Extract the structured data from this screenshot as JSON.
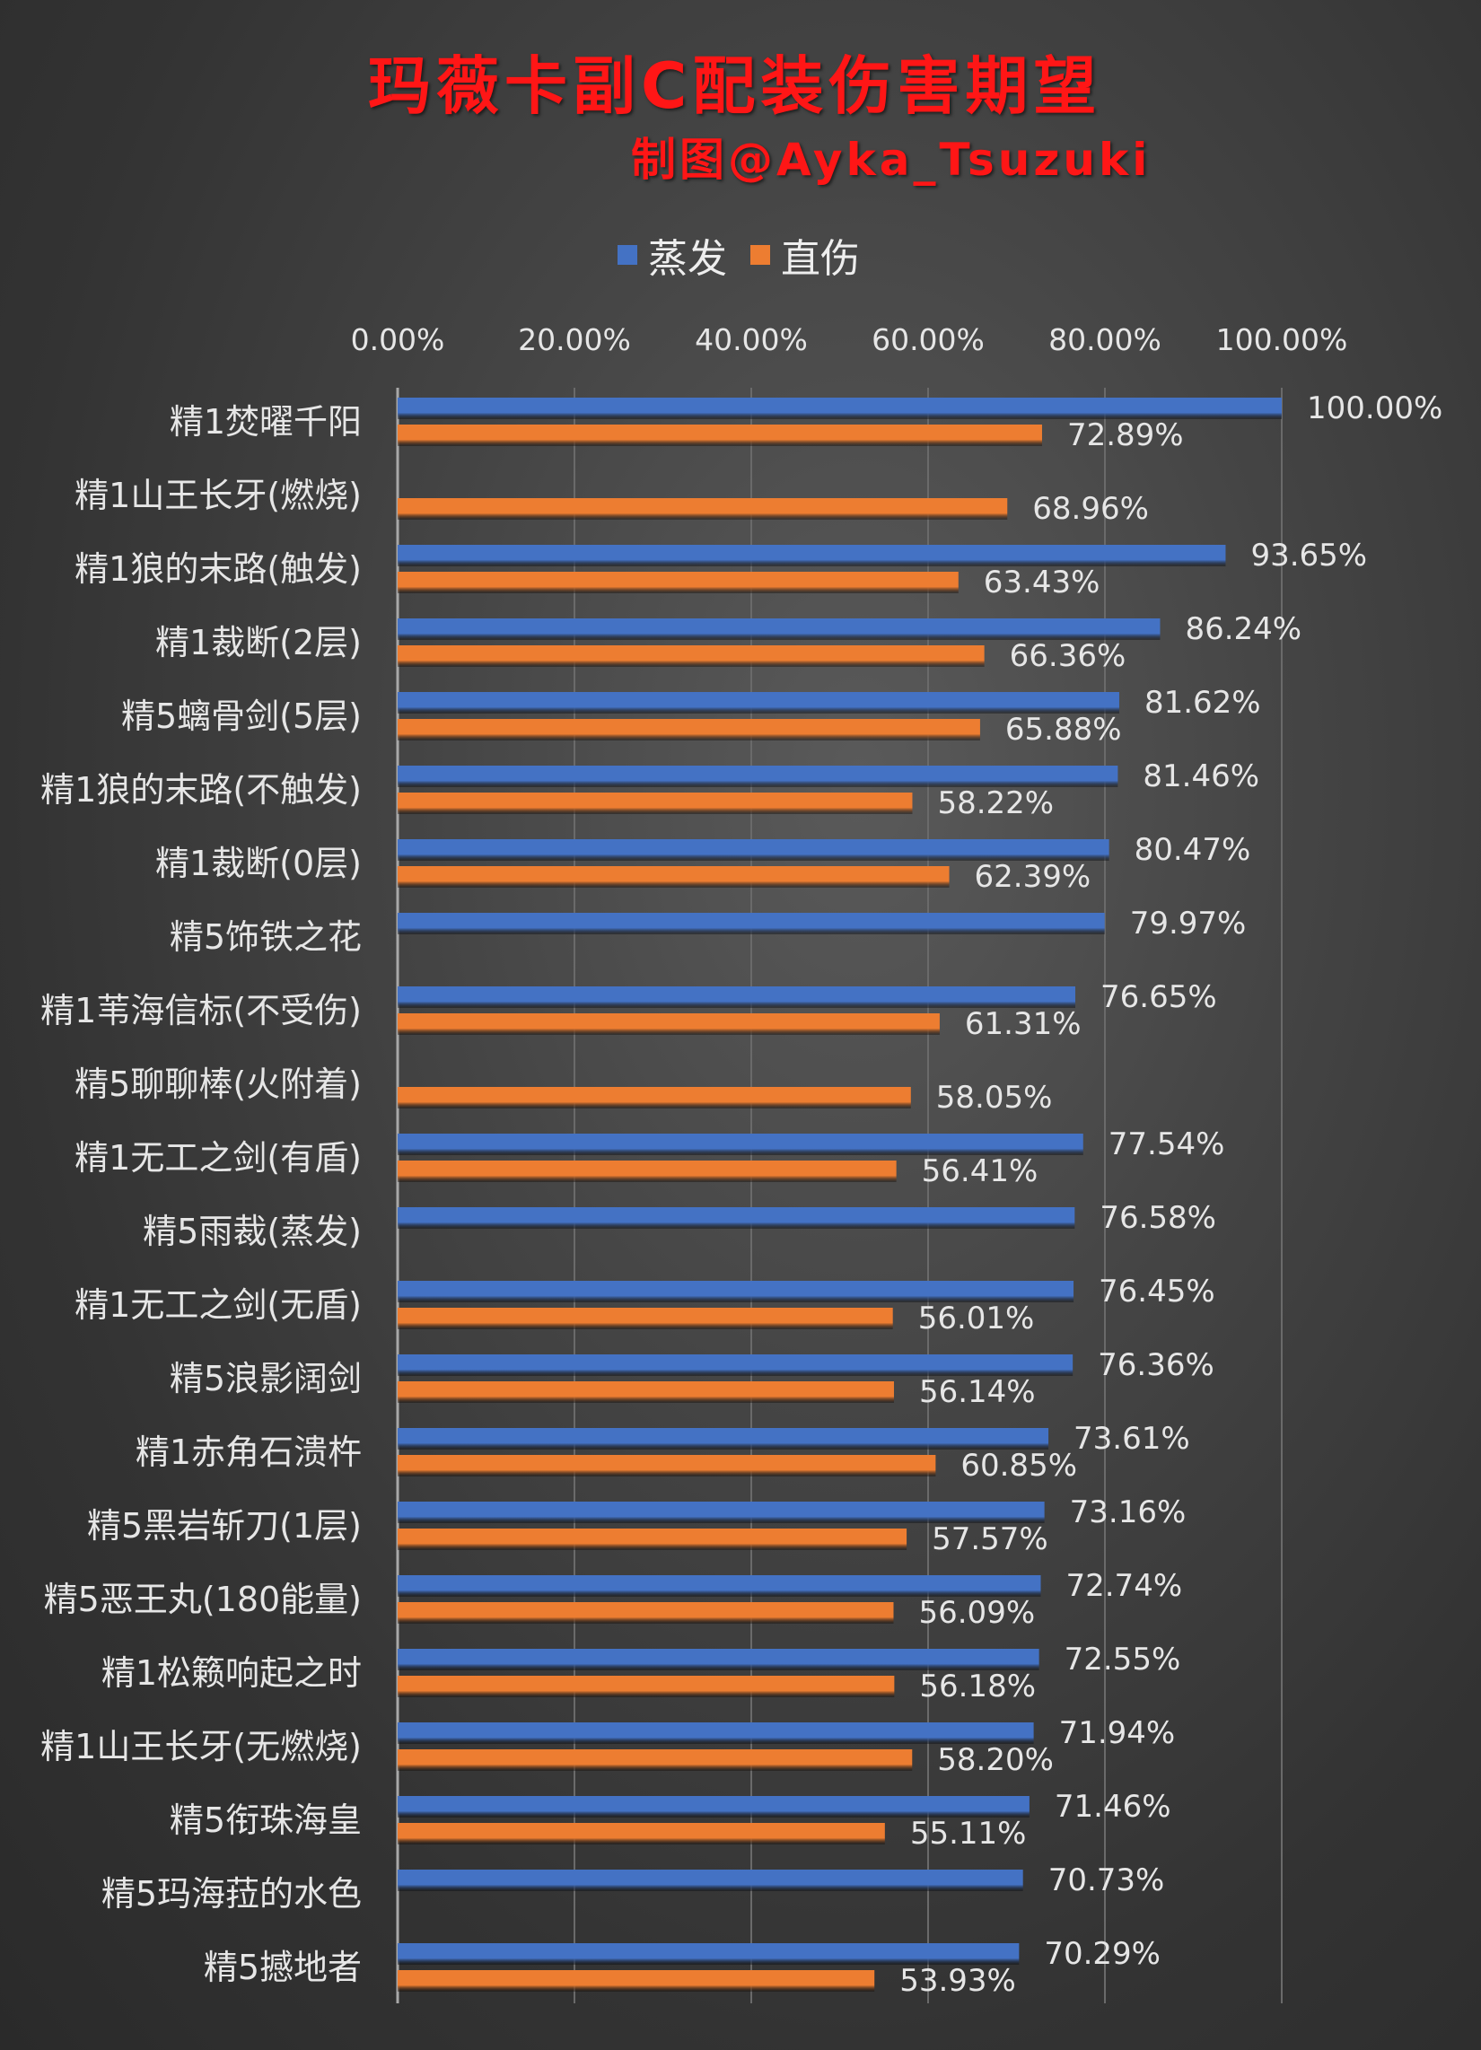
{
  "colors": {
    "steam": "#4472c4",
    "direct": "#ed7d31",
    "title": "#ff1616"
  },
  "chart_data": {
    "type": "bar",
    "orientation": "horizontal",
    "title": "玛薇卡副C配装伤害期望",
    "subtitle": "制图@Ayka_Tsuzuki",
    "legend_position": "top",
    "xlim": [
      0,
      100
    ],
    "x_ticks": [
      "0.00%",
      "20.00%",
      "40.00%",
      "60.00%",
      "80.00%",
      "100.00%"
    ],
    "grid": true,
    "categories": [
      "精1焚曜千阳",
      "精1山王长牙(燃烧)",
      "精1狼的末路(触发)",
      "精1裁断(2层)",
      "精5螭骨剑(5层)",
      "精1狼的末路(不触发)",
      "精1裁断(0层)",
      "精5饰铁之花",
      "精1苇海信标(不受伤)",
      "精5聊聊棒(火附着)",
      "精1无工之剑(有盾)",
      "精5雨裁(蒸发)",
      "精1无工之剑(无盾)",
      "精5浪影阔剑",
      "精1赤角石溃杵",
      "精5黑岩斩刀(1层)",
      "精5恶王丸(180能量)",
      "精1松籁响起之时",
      "精1山王长牙(无燃烧)",
      "精5衔珠海皇",
      "精5玛海菈的水色",
      "精5撼地者"
    ],
    "series": [
      {
        "name": "蒸发",
        "values": [
          100.0,
          null,
          93.65,
          86.24,
          81.62,
          81.46,
          80.47,
          79.97,
          76.65,
          null,
          77.54,
          76.58,
          76.45,
          76.36,
          73.61,
          73.16,
          72.74,
          72.55,
          71.94,
          71.46,
          70.73,
          70.29
        ],
        "labels": [
          "100.00%",
          null,
          "93.65%",
          "86.24%",
          "81.62%",
          "81.46%",
          "80.47%",
          "79.97%",
          "76.65%",
          null,
          "77.54%",
          "76.58%",
          "76.45%",
          "76.36%",
          "73.61%",
          "73.16%",
          "72.74%",
          "72.55%",
          "71.94%",
          "71.46%",
          "70.73%",
          "70.29%"
        ]
      },
      {
        "name": "直伤",
        "values": [
          72.89,
          68.96,
          63.43,
          66.36,
          65.88,
          58.22,
          62.39,
          null,
          61.31,
          58.05,
          56.41,
          null,
          56.01,
          56.14,
          60.85,
          57.57,
          56.09,
          56.18,
          58.2,
          55.11,
          null,
          53.93
        ],
        "labels": [
          "72.89%",
          "68.96%",
          "63.43%",
          "66.36%",
          "65.88%",
          "58.22%",
          "62.39%",
          null,
          "61.31%",
          "58.05%",
          "56.41%",
          null,
          "56.01%",
          "56.14%",
          "60.85%",
          "57.57%",
          "56.09%",
          "56.18%",
          "58.20%",
          "55.11%",
          null,
          "53.93%"
        ]
      }
    ]
  }
}
